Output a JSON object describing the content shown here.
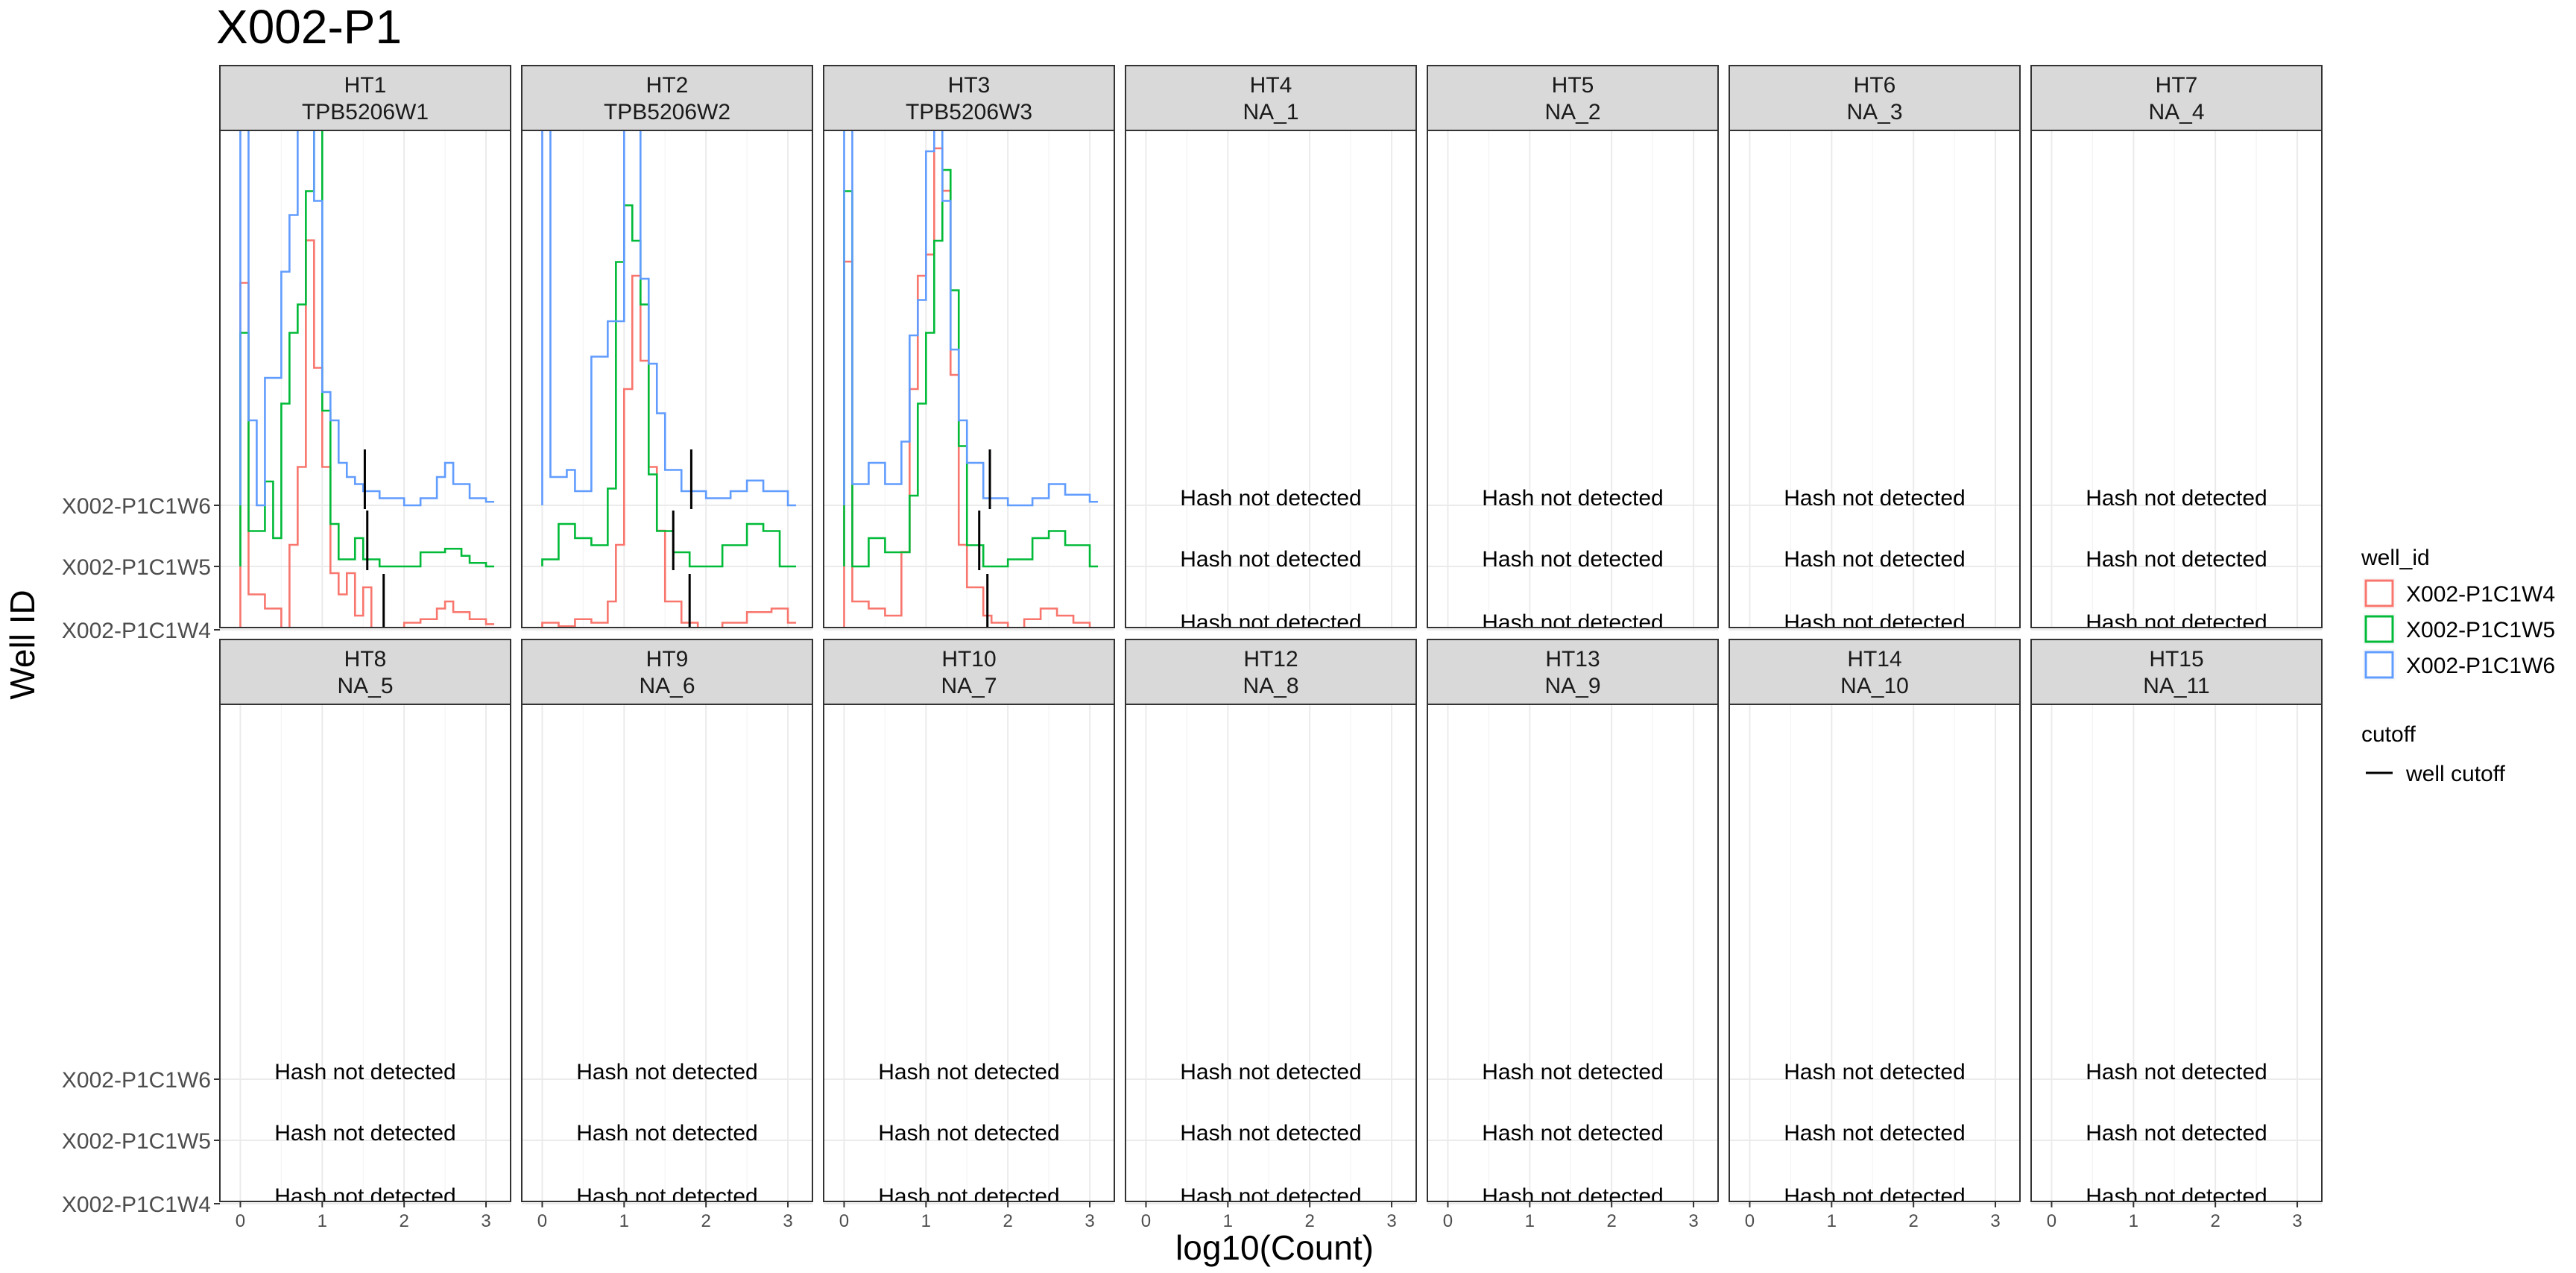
{
  "chart_data": {
    "type": "histogram-ridgeline-facets",
    "title": "X002-P1",
    "xlabel": "log10(Count)",
    "ylabel": "Well ID",
    "x_ticks": [
      0,
      1,
      2,
      3
    ],
    "xlim": [
      -0.25,
      3.3
    ],
    "y_categories": [
      "X002-P1C1W4",
      "X002-P1C1W5",
      "X002-P1C1W6"
    ],
    "empty_label": "Hash not detected",
    "grid": true,
    "legend": {
      "position": "right",
      "color_title": "well_id",
      "entries": [
        {
          "name": "X002-P1C1W4",
          "color": "#F8766D"
        },
        {
          "name": "X002-P1C1W5",
          "color": "#00BA38"
        },
        {
          "name": "X002-P1C1W6",
          "color": "#619CFF"
        }
      ],
      "cutoff_title": "cutoff",
      "cutoff_label": "well cutoff"
    },
    "facets": [
      {
        "hto": "HT1",
        "sample": "TPB5206W1",
        "detected": true,
        "cutoffs": {
          "X002-P1C1W4": 1.75,
          "X002-P1C1W5": 1.55,
          "X002-P1C1W6": 1.52
        },
        "series": {
          "X002-P1C1W4": [
            [
              0,
              4.9
            ],
            [
              0.1,
              0.5
            ],
            [
              0.3,
              0.3
            ],
            [
              0.5,
              0
            ],
            [
              0.6,
              1.2
            ],
            [
              0.7,
              2.3
            ],
            [
              0.8,
              5.5
            ],
            [
              0.9,
              3.7
            ],
            [
              1.0,
              2.3
            ],
            [
              1.1,
              0.8
            ],
            [
              1.2,
              0.5
            ],
            [
              1.3,
              0.8
            ],
            [
              1.4,
              0.2
            ],
            [
              1.5,
              0.6
            ],
            [
              1.6,
              0
            ],
            [
              2.0,
              0.1
            ],
            [
              2.2,
              0.15
            ],
            [
              2.4,
              0.3
            ],
            [
              2.5,
              0.4
            ],
            [
              2.6,
              0.25
            ],
            [
              2.8,
              0.15
            ],
            [
              3.0,
              0.08
            ]
          ],
          "X002-P1C1W5": [
            [
              0,
              3.3
            ],
            [
              0.1,
              0.5
            ],
            [
              0.3,
              1.2
            ],
            [
              0.4,
              0.4
            ],
            [
              0.5,
              2.3
            ],
            [
              0.6,
              3.3
            ],
            [
              0.7,
              3.7
            ],
            [
              0.8,
              5.3
            ],
            [
              0.9,
              6.6
            ],
            [
              1.0,
              2.2
            ],
            [
              1.1,
              0.6
            ],
            [
              1.2,
              0.1
            ],
            [
              1.4,
              0.4
            ],
            [
              1.5,
              0.1
            ],
            [
              1.7,
              0
            ],
            [
              2.2,
              0.2
            ],
            [
              2.5,
              0.25
            ],
            [
              2.7,
              0.15
            ],
            [
              2.8,
              0.05
            ],
            [
              3.0,
              0
            ]
          ],
          "X002-P1C1W6": [
            [
              0,
              6.1
            ],
            [
              0.1,
              1.2
            ],
            [
              0.2,
              0
            ],
            [
              0.3,
              1.8
            ],
            [
              0.5,
              3.3
            ],
            [
              0.6,
              4.1
            ],
            [
              0.7,
              5.9
            ],
            [
              0.8,
              6.0
            ],
            [
              0.9,
              4.3
            ],
            [
              1.0,
              1.6
            ],
            [
              1.1,
              1.2
            ],
            [
              1.2,
              0.6
            ],
            [
              1.3,
              0.4
            ],
            [
              1.4,
              0.3
            ],
            [
              1.5,
              0.2
            ],
            [
              1.7,
              0.1
            ],
            [
              2.0,
              0
            ],
            [
              2.2,
              0.1
            ],
            [
              2.4,
              0.4
            ],
            [
              2.5,
              0.6
            ],
            [
              2.6,
              0.3
            ],
            [
              2.8,
              0.1
            ],
            [
              3.0,
              0.05
            ]
          ]
        }
      },
      {
        "hto": "HT2",
        "sample": "TPB5206W2",
        "detected": true,
        "cutoffs": {
          "X002-P1C1W4": 1.8,
          "X002-P1C1W5": 1.6,
          "X002-P1C1W6": 1.82
        },
        "series": {
          "X002-P1C1W4": [
            [
              0,
              0.1
            ],
            [
              0.2,
              0.05
            ],
            [
              0.4,
              0.15
            ],
            [
              0.6,
              0.1
            ],
            [
              0.8,
              0.4
            ],
            [
              0.9,
              1.2
            ],
            [
              1.0,
              3.4
            ],
            [
              1.1,
              5.0
            ],
            [
              1.2,
              3.8
            ],
            [
              1.3,
              2.3
            ],
            [
              1.4,
              1.4
            ],
            [
              1.5,
              0.4
            ],
            [
              1.7,
              0.1
            ],
            [
              1.9,
              0
            ],
            [
              2.2,
              0.1
            ],
            [
              2.5,
              0.25
            ],
            [
              2.8,
              0.3
            ],
            [
              3.0,
              0.1
            ]
          ],
          "X002-P1C1W5": [
            [
              0,
              0.1
            ],
            [
              0.2,
              0.6
            ],
            [
              0.4,
              0.4
            ],
            [
              0.6,
              0.3
            ],
            [
              0.8,
              1.1
            ],
            [
              0.9,
              4.3
            ],
            [
              1.0,
              5.1
            ],
            [
              1.1,
              4.6
            ],
            [
              1.2,
              3.7
            ],
            [
              1.3,
              1.3
            ],
            [
              1.4,
              0.5
            ],
            [
              1.6,
              0.2
            ],
            [
              1.8,
              0
            ],
            [
              2.2,
              0.3
            ],
            [
              2.5,
              0.6
            ],
            [
              2.7,
              0.5
            ],
            [
              2.9,
              0
            ],
            [
              3.0,
              0
            ]
          ],
          "X002-P1C1W6": [
            [
              0,
              6.9
            ],
            [
              0.1,
              0.4
            ],
            [
              0.3,
              0.5
            ],
            [
              0.4,
              0.2
            ],
            [
              0.6,
              2.1
            ],
            [
              0.8,
              2.6
            ],
            [
              0.9,
              2.6
            ],
            [
              1.0,
              5.3
            ],
            [
              1.1,
              5.9
            ],
            [
              1.2,
              3.2
            ],
            [
              1.3,
              2.0
            ],
            [
              1.4,
              1.3
            ],
            [
              1.5,
              0.5
            ],
            [
              1.7,
              0.2
            ],
            [
              2.0,
              0.1
            ],
            [
              2.3,
              0.2
            ],
            [
              2.5,
              0.35
            ],
            [
              2.7,
              0.2
            ],
            [
              3.0,
              0
            ]
          ]
        }
      },
      {
        "hto": "HT3",
        "sample": "TPB5206W3",
        "detected": true,
        "cutoffs": {
          "X002-P1C1W4": 1.75,
          "X002-P1C1W5": 1.65,
          "X002-P1C1W6": 1.78
        },
        "series": {
          "X002-P1C1W4": [
            [
              0,
              5.2
            ],
            [
              0.1,
              0.4
            ],
            [
              0.3,
              0.3
            ],
            [
              0.5,
              0.2
            ],
            [
              0.7,
              1.1
            ],
            [
              0.8,
              3.4
            ],
            [
              0.9,
              5.0
            ],
            [
              1.0,
              5.3
            ],
            [
              1.1,
              6.8
            ],
            [
              1.2,
              6.2
            ],
            [
              1.3,
              3.6
            ],
            [
              1.4,
              1.2
            ],
            [
              1.5,
              0.6
            ],
            [
              1.7,
              0.2
            ],
            [
              1.8,
              0.1
            ],
            [
              2.0,
              0
            ],
            [
              2.2,
              0.15
            ],
            [
              2.4,
              0.3
            ],
            [
              2.6,
              0.2
            ],
            [
              2.8,
              0.1
            ],
            [
              3.0,
              0
            ]
          ],
          "X002-P1C1W5": [
            [
              0,
              5.3
            ],
            [
              0.1,
              0
            ],
            [
              0.3,
              0.4
            ],
            [
              0.5,
              0.2
            ],
            [
              0.7,
              0.2
            ],
            [
              0.8,
              1.0
            ],
            [
              0.9,
              2.3
            ],
            [
              1.0,
              3.3
            ],
            [
              1.1,
              4.6
            ],
            [
              1.2,
              5.6
            ],
            [
              1.3,
              3.9
            ],
            [
              1.4,
              1.7
            ],
            [
              1.5,
              0.3
            ],
            [
              1.7,
              0
            ],
            [
              2.0,
              0.1
            ],
            [
              2.3,
              0.4
            ],
            [
              2.5,
              0.5
            ],
            [
              2.7,
              0.3
            ],
            [
              3.0,
              0
            ]
          ],
          "X002-P1C1W6": [
            [
              0,
              7.1
            ],
            [
              0.1,
              0.3
            ],
            [
              0.3,
              0.6
            ],
            [
              0.5,
              0.3
            ],
            [
              0.7,
              0.9
            ],
            [
              0.8,
              2.4
            ],
            [
              0.9,
              2.9
            ],
            [
              1.0,
              5.0
            ],
            [
              1.1,
              5.6
            ],
            [
              1.2,
              4.3
            ],
            [
              1.3,
              2.2
            ],
            [
              1.4,
              1.2
            ],
            [
              1.5,
              0.6
            ],
            [
              1.7,
              0.1
            ],
            [
              2.0,
              0
            ],
            [
              2.3,
              0.1
            ],
            [
              2.5,
              0.3
            ],
            [
              2.7,
              0.15
            ],
            [
              3.0,
              0.05
            ]
          ]
        }
      },
      {
        "hto": "HT4",
        "sample": "NA_1",
        "detected": false
      },
      {
        "hto": "HT5",
        "sample": "NA_2",
        "detected": false
      },
      {
        "hto": "HT6",
        "sample": "NA_3",
        "detected": false
      },
      {
        "hto": "HT7",
        "sample": "NA_4",
        "detected": false
      },
      {
        "hto": "HT8",
        "sample": "NA_5",
        "detected": false
      },
      {
        "hto": "HT9",
        "sample": "NA_6",
        "detected": false
      },
      {
        "hto": "HT10",
        "sample": "NA_7",
        "detected": false
      },
      {
        "hto": "HT12",
        "sample": "NA_8",
        "detected": false
      },
      {
        "hto": "HT13",
        "sample": "NA_9",
        "detected": false
      },
      {
        "hto": "HT14",
        "sample": "NA_10",
        "detected": false
      },
      {
        "hto": "HT15",
        "sample": "NA_11",
        "detected": false
      }
    ]
  }
}
